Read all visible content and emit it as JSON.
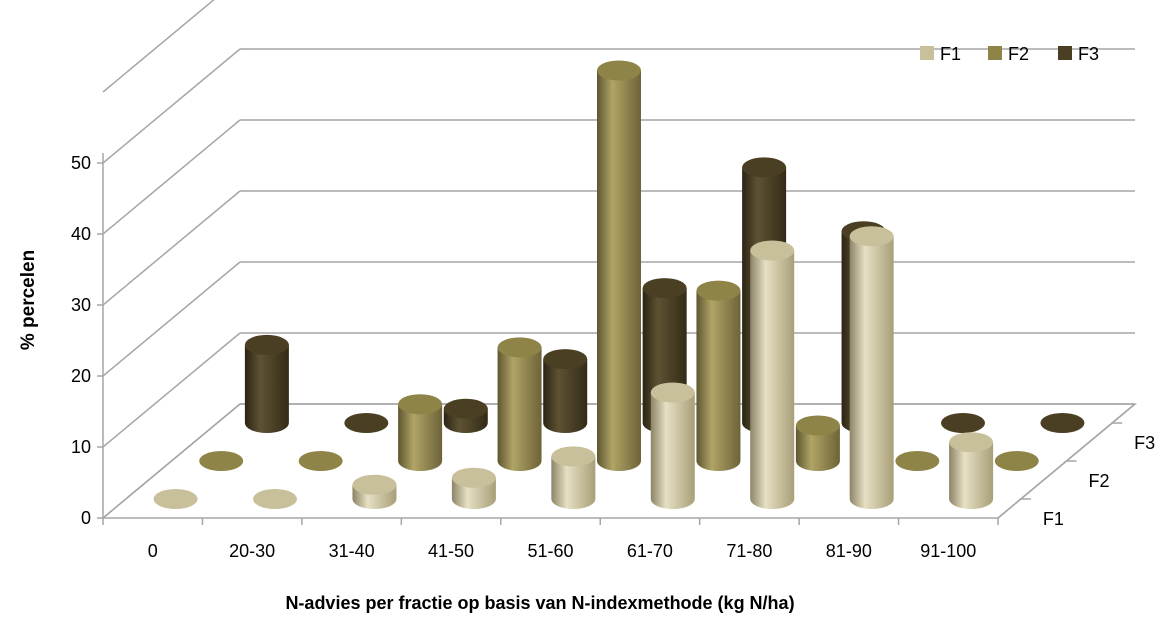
{
  "chart_data": {
    "type": "bar",
    "variant": "3d-cylinder",
    "title": "",
    "xlabel": "N-advies per fractie op basis van N-indexmethode (kg N/ha)",
    "ylabel": "% percelen",
    "ylim": [
      0,
      60
    ],
    "yticks": [
      "0",
      "10",
      "20",
      "30",
      "40",
      "50"
    ],
    "grid": true,
    "legend_position": "top-right",
    "categories": [
      "0",
      "20-30",
      "31-40",
      "41-50",
      "51-60",
      "61-70",
      "71-80",
      "81-90",
      "91-100"
    ],
    "depth_labels": [
      "F1",
      "F2",
      "F3"
    ],
    "series": [
      {
        "name": "F1",
        "color": "#c8c09a",
        "values": [
          0,
          0,
          2,
          3,
          6,
          15,
          35,
          37,
          8
        ]
      },
      {
        "name": "F2",
        "color": "#8f8448",
        "values": [
          0,
          0,
          8,
          16,
          55,
          24,
          5,
          0,
          0
        ]
      },
      {
        "name": "F3",
        "color": "#4a3f22",
        "values": [
          11,
          0,
          2,
          9,
          19,
          36,
          27,
          0,
          0
        ]
      }
    ]
  }
}
